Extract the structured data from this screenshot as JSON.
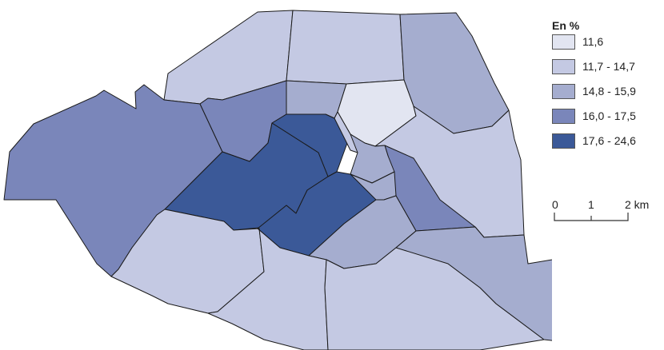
{
  "legend": {
    "title": "En %",
    "classes": [
      {
        "label": "11,6",
        "color": "#e2e5f1"
      },
      {
        "label": "11,7 - 14,7",
        "color": "#c4c9e3"
      },
      {
        "label": "14,8 - 15,9",
        "color": "#a5adcf"
      },
      {
        "label": "16,0 - 17,5",
        "color": "#7a86ba"
      },
      {
        "label": "17,6 - 24,6",
        "color": "#3b5998"
      }
    ]
  },
  "scale": {
    "ticks": [
      "0",
      "1",
      "2 km"
    ],
    "stroke": "#333333"
  },
  "map": {
    "border_color": "#1a1a1a",
    "districts": [
      {
        "id": "17",
        "class": 1
      },
      {
        "id": "18",
        "class": 1
      },
      {
        "id": "19",
        "class": 2
      },
      {
        "id": "16",
        "class": 3
      },
      {
        "id": "8",
        "class": 3
      },
      {
        "id": "9",
        "class": 2
      },
      {
        "id": "10",
        "class": 0
      },
      {
        "id": "20",
        "class": 1
      },
      {
        "id": "11",
        "class": 3
      },
      {
        "id": "1",
        "class": 4
      },
      {
        "id": "2",
        "class": 1
      },
      {
        "id": "3",
        "class": 2
      },
      {
        "id": "7",
        "class": 4
      },
      {
        "id": "6",
        "class": 4
      },
      {
        "id": "4",
        "class": 2
      },
      {
        "id": "5",
        "class": 2
      },
      {
        "id": "15",
        "class": 1
      },
      {
        "id": "14",
        "class": 1
      },
      {
        "id": "13",
        "class": 1
      },
      {
        "id": "12",
        "class": 2
      }
    ]
  }
}
